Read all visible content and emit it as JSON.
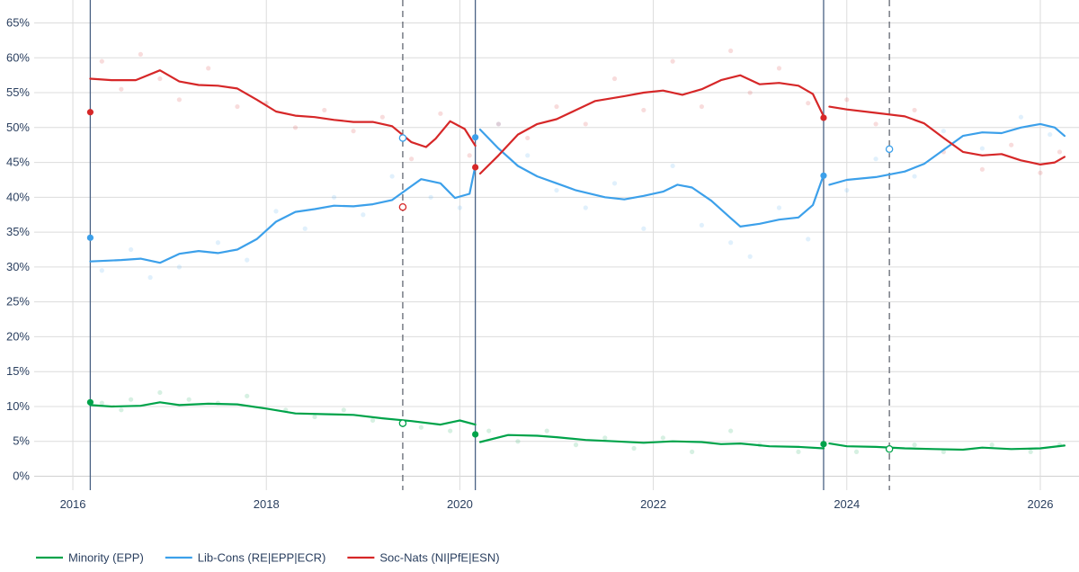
{
  "chart_data": {
    "type": "line",
    "title": "",
    "xlabel": "",
    "ylabel": "",
    "xlim": [
      2015.6,
      2026.4
    ],
    "ylim": [
      -2,
      67
    ],
    "y_ticks": [
      0,
      5,
      10,
      15,
      20,
      25,
      30,
      35,
      40,
      45,
      50,
      55,
      60,
      65
    ],
    "y_tick_labels": [
      "0%",
      "5%",
      "10%",
      "15%",
      "20%",
      "25%",
      "30%",
      "35%",
      "40%",
      "45%",
      "50%",
      "55%",
      "60%",
      "65%"
    ],
    "x_ticks": [
      2016,
      2018,
      2020,
      2022,
      2024,
      2026
    ],
    "x_tick_labels": [
      "2016",
      "2018",
      "2020",
      "2022",
      "2024",
      "2026"
    ],
    "grid": true,
    "legend_position": "bottom",
    "election_lines_solid": [
      2016.18,
      2020.16,
      2023.76
    ],
    "election_lines_dashed": [
      2019.41,
      2024.44
    ],
    "series": [
      {
        "name": "Minority (EPP)",
        "color": "#00a34a",
        "segments": [
          [
            [
              2016.18,
              10.2
            ],
            [
              2016.4,
              10.0
            ],
            [
              2016.7,
              10.1
            ],
            [
              2016.9,
              10.6
            ],
            [
              2017.1,
              10.2
            ],
            [
              2017.4,
              10.4
            ],
            [
              2017.7,
              10.3
            ],
            [
              2018.0,
              9.7
            ],
            [
              2018.3,
              9.0
            ],
            [
              2018.6,
              8.9
            ],
            [
              2018.9,
              8.8
            ],
            [
              2019.2,
              8.3
            ],
            [
              2019.5,
              7.9
            ],
            [
              2019.8,
              7.4
            ],
            [
              2020.0,
              8.0
            ],
            [
              2020.16,
              7.4
            ]
          ],
          [
            [
              2020.21,
              4.9
            ],
            [
              2020.5,
              5.9
            ],
            [
              2020.8,
              5.8
            ],
            [
              2021.0,
              5.6
            ],
            [
              2021.3,
              5.2
            ],
            [
              2021.6,
              5.0
            ],
            [
              2021.9,
              4.8
            ],
            [
              2022.2,
              5.0
            ],
            [
              2022.5,
              4.9
            ],
            [
              2022.7,
              4.6
            ],
            [
              2022.9,
              4.7
            ],
            [
              2023.2,
              4.3
            ],
            [
              2023.5,
              4.2
            ],
            [
              2023.76,
              4.0
            ]
          ],
          [
            [
              2023.82,
              4.7
            ],
            [
              2024.0,
              4.3
            ],
            [
              2024.3,
              4.2
            ],
            [
              2024.6,
              4.0
            ],
            [
              2024.9,
              3.9
            ],
            [
              2025.2,
              3.8
            ],
            [
              2025.4,
              4.1
            ],
            [
              2025.7,
              3.9
            ],
            [
              2026.0,
              4.0
            ],
            [
              2026.25,
              4.4
            ]
          ]
        ],
        "election_results": [
          [
            2016.18,
            10.6
          ],
          [
            2020.16,
            6.0
          ],
          [
            2023.76,
            4.6
          ]
        ],
        "hollow_results": [
          [
            2019.41,
            7.6
          ],
          [
            2024.44,
            3.9
          ]
        ],
        "polls": [
          [
            2016.3,
            10.5
          ],
          [
            2016.5,
            9.5
          ],
          [
            2016.6,
            11.0
          ],
          [
            2016.9,
            12.0
          ],
          [
            2017.2,
            11.0
          ],
          [
            2017.5,
            10.5
          ],
          [
            2017.8,
            11.5
          ],
          [
            2018.2,
            9.5
          ],
          [
            2018.5,
            8.5
          ],
          [
            2018.8,
            9.5
          ],
          [
            2019.1,
            8.0
          ],
          [
            2019.6,
            7.0
          ],
          [
            2019.9,
            6.5
          ],
          [
            2020.3,
            6.5
          ],
          [
            2020.6,
            5.0
          ],
          [
            2020.9,
            6.5
          ],
          [
            2021.2,
            4.5
          ],
          [
            2021.5,
            5.5
          ],
          [
            2021.8,
            4.0
          ],
          [
            2022.1,
            5.5
          ],
          [
            2022.4,
            3.5
          ],
          [
            2022.8,
            6.5
          ],
          [
            2023.1,
            4.5
          ],
          [
            2023.5,
            3.5
          ],
          [
            2024.1,
            3.5
          ],
          [
            2024.7,
            4.5
          ],
          [
            2025.0,
            3.5
          ],
          [
            2025.5,
            4.5
          ],
          [
            2025.9,
            3.5
          ],
          [
            2026.2,
            4.5
          ]
        ]
      },
      {
        "name": "Lib-Cons (RE|EPP|ECR)",
        "color": "#3ca0ea",
        "segments": [
          [
            [
              2016.18,
              30.8
            ],
            [
              2016.5,
              31.0
            ],
            [
              2016.7,
              31.2
            ],
            [
              2016.9,
              30.6
            ],
            [
              2017.1,
              31.9
            ],
            [
              2017.3,
              32.3
            ],
            [
              2017.5,
              32.0
            ],
            [
              2017.7,
              32.5
            ],
            [
              2017.9,
              34.0
            ],
            [
              2018.1,
              36.5
            ],
            [
              2018.3,
              37.9
            ],
            [
              2018.5,
              38.3
            ],
            [
              2018.7,
              38.8
            ],
            [
              2018.9,
              38.7
            ],
            [
              2019.1,
              39.0
            ],
            [
              2019.3,
              39.6
            ],
            [
              2019.5,
              41.6
            ],
            [
              2019.6,
              42.6
            ],
            [
              2019.8,
              42.0
            ],
            [
              2019.95,
              39.9
            ],
            [
              2020.1,
              40.5
            ],
            [
              2020.16,
              44.5
            ]
          ],
          [
            [
              2020.21,
              49.7
            ],
            [
              2020.4,
              47.0
            ],
            [
              2020.6,
              44.5
            ],
            [
              2020.8,
              43.0
            ],
            [
              2021.0,
              42.0
            ],
            [
              2021.2,
              41.0
            ],
            [
              2021.5,
              40.0
            ],
            [
              2021.7,
              39.7
            ],
            [
              2021.9,
              40.2
            ],
            [
              2022.1,
              40.8
            ],
            [
              2022.25,
              41.8
            ],
            [
              2022.4,
              41.4
            ],
            [
              2022.6,
              39.5
            ],
            [
              2022.8,
              37.0
            ],
            [
              2022.9,
              35.8
            ],
            [
              2023.1,
              36.2
            ],
            [
              2023.3,
              36.8
            ],
            [
              2023.5,
              37.1
            ],
            [
              2023.65,
              38.9
            ],
            [
              2023.76,
              43.2
            ]
          ],
          [
            [
              2023.82,
              41.8
            ],
            [
              2024.0,
              42.5
            ],
            [
              2024.3,
              42.9
            ],
            [
              2024.6,
              43.7
            ],
            [
              2024.8,
              44.8
            ],
            [
              2025.0,
              46.8
            ],
            [
              2025.2,
              48.8
            ],
            [
              2025.4,
              49.3
            ],
            [
              2025.6,
              49.2
            ],
            [
              2025.8,
              50.0
            ],
            [
              2026.0,
              50.5
            ],
            [
              2026.15,
              50.0
            ],
            [
              2026.25,
              48.8
            ]
          ]
        ],
        "election_results": [
          [
            2016.18,
            34.2
          ],
          [
            2020.16,
            48.6
          ],
          [
            2023.76,
            43.1
          ]
        ],
        "hollow_results": [
          [
            2019.41,
            48.5
          ],
          [
            2024.44,
            46.9
          ]
        ],
        "polls": [
          [
            2016.3,
            29.5
          ],
          [
            2016.6,
            32.5
          ],
          [
            2016.8,
            28.5
          ],
          [
            2017.1,
            30.0
          ],
          [
            2017.5,
            33.5
          ],
          [
            2017.8,
            31.0
          ],
          [
            2018.1,
            38.0
          ],
          [
            2018.4,
            35.5
          ],
          [
            2018.7,
            40.0
          ],
          [
            2019.0,
            37.5
          ],
          [
            2019.3,
            43.0
          ],
          [
            2019.7,
            40.0
          ],
          [
            2020.0,
            38.5
          ],
          [
            2020.4,
            50.5
          ],
          [
            2020.7,
            46.0
          ],
          [
            2021.0,
            41.0
          ],
          [
            2021.3,
            38.5
          ],
          [
            2021.6,
            42.0
          ],
          [
            2021.9,
            35.5
          ],
          [
            2022.2,
            44.5
          ],
          [
            2022.5,
            36.0
          ],
          [
            2022.8,
            33.5
          ],
          [
            2023.0,
            31.5
          ],
          [
            2023.3,
            38.5
          ],
          [
            2023.6,
            34.0
          ],
          [
            2024.0,
            41.0
          ],
          [
            2024.3,
            45.5
          ],
          [
            2024.7,
            43.0
          ],
          [
            2025.0,
            49.5
          ],
          [
            2025.4,
            47.0
          ],
          [
            2025.8,
            51.5
          ],
          [
            2026.1,
            49.0
          ]
        ]
      },
      {
        "name": "Soc-Nats (NI|PfE|ESN)",
        "color": "#d62728",
        "segments": [
          [
            [
              2016.18,
              57.0
            ],
            [
              2016.4,
              56.8
            ],
            [
              2016.65,
              56.8
            ],
            [
              2016.9,
              58.2
            ],
            [
              2017.1,
              56.6
            ],
            [
              2017.3,
              56.1
            ],
            [
              2017.5,
              56.0
            ],
            [
              2017.7,
              55.6
            ],
            [
              2017.9,
              54.0
            ],
            [
              2018.1,
              52.3
            ],
            [
              2018.3,
              51.7
            ],
            [
              2018.5,
              51.5
            ],
            [
              2018.7,
              51.1
            ],
            [
              2018.9,
              50.8
            ],
            [
              2019.1,
              50.8
            ],
            [
              2019.3,
              50.2
            ],
            [
              2019.5,
              47.9
            ],
            [
              2019.65,
              47.2
            ],
            [
              2019.75,
              48.4
            ],
            [
              2019.9,
              50.9
            ],
            [
              2020.05,
              49.8
            ],
            [
              2020.16,
              47.4
            ]
          ],
          [
            [
              2020.21,
              43.4
            ],
            [
              2020.4,
              46.0
            ],
            [
              2020.6,
              49.0
            ],
            [
              2020.8,
              50.5
            ],
            [
              2021.0,
              51.2
            ],
            [
              2021.2,
              52.5
            ],
            [
              2021.4,
              53.8
            ],
            [
              2021.7,
              54.5
            ],
            [
              2021.9,
              55.0
            ],
            [
              2022.1,
              55.3
            ],
            [
              2022.3,
              54.7
            ],
            [
              2022.5,
              55.5
            ],
            [
              2022.7,
              56.8
            ],
            [
              2022.9,
              57.5
            ],
            [
              2023.1,
              56.2
            ],
            [
              2023.3,
              56.4
            ],
            [
              2023.5,
              56.0
            ],
            [
              2023.65,
              54.8
            ],
            [
              2023.76,
              51.6
            ]
          ],
          [
            [
              2023.82,
              53.0
            ],
            [
              2024.0,
              52.6
            ],
            [
              2024.3,
              52.1
            ],
            [
              2024.6,
              51.6
            ],
            [
              2024.8,
              50.6
            ],
            [
              2025.0,
              48.5
            ],
            [
              2025.2,
              46.5
            ],
            [
              2025.4,
              46.0
            ],
            [
              2025.6,
              46.2
            ],
            [
              2025.8,
              45.3
            ],
            [
              2026.0,
              44.7
            ],
            [
              2026.15,
              45.0
            ],
            [
              2026.25,
              45.8
            ]
          ]
        ],
        "election_results": [
          [
            2016.18,
            52.2
          ],
          [
            2020.16,
            44.3
          ],
          [
            2023.76,
            51.4
          ]
        ],
        "hollow_results": [
          [
            2019.41,
            38.6
          ]
        ],
        "polls": [
          [
            2016.3,
            59.5
          ],
          [
            2016.5,
            55.5
          ],
          [
            2016.7,
            60.5
          ],
          [
            2016.9,
            57.0
          ],
          [
            2017.1,
            54.0
          ],
          [
            2017.4,
            58.5
          ],
          [
            2017.7,
            53.0
          ],
          [
            2018.0,
            53.5
          ],
          [
            2018.3,
            50.0
          ],
          [
            2018.6,
            52.5
          ],
          [
            2018.9,
            49.5
          ],
          [
            2019.2,
            51.5
          ],
          [
            2019.5,
            45.5
          ],
          [
            2019.8,
            52.0
          ],
          [
            2020.1,
            46.0
          ],
          [
            2020.4,
            50.5
          ],
          [
            2020.7,
            48.5
          ],
          [
            2021.0,
            53.0
          ],
          [
            2021.3,
            50.5
          ],
          [
            2021.6,
            57.0
          ],
          [
            2021.9,
            52.5
          ],
          [
            2022.2,
            59.5
          ],
          [
            2022.5,
            53.0
          ],
          [
            2022.8,
            61.0
          ],
          [
            2023.0,
            55.0
          ],
          [
            2023.3,
            58.5
          ],
          [
            2023.6,
            53.5
          ],
          [
            2024.0,
            54.0
          ],
          [
            2024.3,
            50.5
          ],
          [
            2024.7,
            52.5
          ],
          [
            2025.0,
            46.5
          ],
          [
            2025.4,
            44.0
          ],
          [
            2025.7,
            47.5
          ],
          [
            2026.0,
            43.5
          ],
          [
            2026.2,
            46.5
          ]
        ]
      }
    ]
  }
}
